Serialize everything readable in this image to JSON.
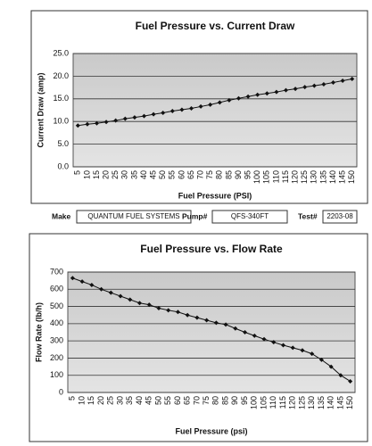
{
  "chart_data": [
    {
      "type": "line",
      "title": "Fuel Pressure vs. Current Draw",
      "x_label": "Fuel Pressure (PSI)",
      "y_label": "Current Draw (amp)",
      "categories": [
        "5",
        "10",
        "15",
        "20",
        "25",
        "30",
        "35",
        "40",
        "45",
        "50",
        "55",
        "60",
        "65",
        "70",
        "75",
        "80",
        "85",
        "90",
        "95",
        "100",
        "105",
        "110",
        "115",
        "120",
        "125",
        "130",
        "135",
        "140",
        "145",
        "150"
      ],
      "values": [
        9.1,
        9.4,
        9.6,
        9.9,
        10.2,
        10.6,
        10.9,
        11.2,
        11.6,
        11.9,
        12.3,
        12.6,
        12.9,
        13.3,
        13.7,
        14.2,
        14.7,
        15.1,
        15.5,
        15.9,
        16.2,
        16.5,
        16.9,
        17.2,
        17.6,
        17.9,
        18.2,
        18.6,
        19.0,
        19.4
      ],
      "color": "#111111",
      "ylim": [
        0,
        25
      ],
      "yticks": [
        {
          "value": 0,
          "label": "0.0"
        },
        {
          "value": 5,
          "label": "5.0"
        },
        {
          "value": 10,
          "label": "10.0"
        },
        {
          "value": 15,
          "label": "15.0"
        },
        {
          "value": 20,
          "label": "20.0"
        },
        {
          "value": 25,
          "label": "25.0"
        }
      ],
      "grid": true
    },
    {
      "type": "line",
      "title": "Fuel Pressure vs. Flow Rate",
      "x_label": "Fuel Pressure (psi)",
      "y_label": "Flow Rate (lb/h)",
      "categories": [
        "5",
        "10",
        "15",
        "20",
        "25",
        "30",
        "35",
        "40",
        "45",
        "50",
        "55",
        "60",
        "65",
        "70",
        "75",
        "80",
        "85",
        "90",
        "95",
        "100",
        "105",
        "110",
        "115",
        "120",
        "125",
        "130",
        "135",
        "140",
        "145",
        "150"
      ],
      "values": [
        665,
        645,
        625,
        600,
        580,
        560,
        540,
        520,
        510,
        490,
        478,
        468,
        450,
        435,
        420,
        405,
        395,
        372,
        350,
        330,
        310,
        292,
        275,
        260,
        245,
        225,
        190,
        150,
        100,
        65
      ],
      "color": "#111111",
      "ylim": [
        0,
        700
      ],
      "yticks": [
        0,
        100,
        200,
        300,
        400,
        500,
        600,
        700
      ],
      "grid": true
    }
  ],
  "form": {
    "make_label": "Make",
    "make": "QUANTUM FUEL SYSTEMS",
    "pump_label": "Pump#",
    "pump": "QFS-340FT",
    "test_label": "Test#",
    "test": "2203-08"
  }
}
